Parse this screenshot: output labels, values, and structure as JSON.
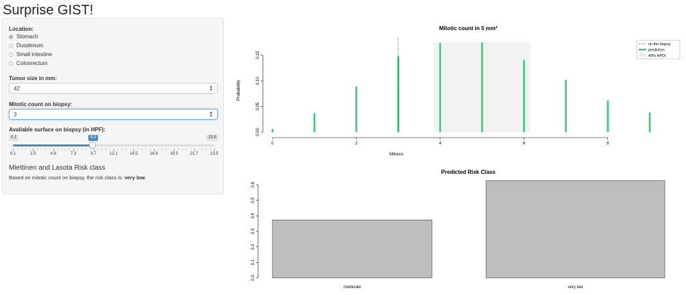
{
  "app": {
    "title": "Surprise GIST!"
  },
  "sidebar": {
    "location_label": "Location:",
    "locations": [
      {
        "label": "Stomach",
        "selected": true
      },
      {
        "label": "Duodenum",
        "selected": false
      },
      {
        "label": "Small intestine",
        "selected": false
      },
      {
        "label": "Colonrectum",
        "selected": false
      }
    ],
    "tumor_size_label": "Tumor size in mm:",
    "tumor_size_value": "42",
    "mitotic_label": "Mitotic count on biopsy:",
    "mitotic_value": "3",
    "surface_label": "Available surface on biopsy (in HPF):",
    "slider": {
      "min": 0.1,
      "max": 23.5,
      "value": 9.3,
      "min_label": "0.1",
      "max_label": "23.5",
      "value_label": "9.3",
      "ticks": [
        "0.1",
        "2.5",
        "4.9",
        "7.3",
        "9.7",
        "12.1",
        "14.5",
        "16.9",
        "19.3",
        "21.7",
        "23.5"
      ]
    },
    "risk_title": "Miettinen and Lasota Risk class",
    "risk_text_prefix": "Based on mitotic count on biopsy, the risk class is: ",
    "risk_value": "very low",
    "risk_text_suffix": "."
  },
  "chart_data": [
    {
      "type": "bar",
      "title": "Mitotic count in 5 mm²",
      "xlabel": "Mitosis",
      "ylabel": "Probability",
      "x": [
        0,
        1,
        2,
        3,
        4,
        5,
        6,
        7,
        8,
        9
      ],
      "values": [
        0.006,
        0.037,
        0.089,
        0.148,
        0.174,
        0.175,
        0.141,
        0.102,
        0.062,
        0.038
      ],
      "xticks": [
        "0",
        "2",
        "4",
        "6",
        "8"
      ],
      "yticks": [
        "0.00",
        "0.05",
        "0.10",
        "0.15"
      ],
      "xlim": [
        0,
        9
      ],
      "ylim": [
        0,
        0.175
      ],
      "biopsy_line_x": 3,
      "hpdi": [
        3.85,
        6.15
      ],
      "legend": {
        "position": "top-right",
        "items": [
          "on the biopsy",
          "prediction",
          "49% HPDI"
        ]
      },
      "colors": {
        "prediction": "#3ec77a",
        "hpdi": "#f2f2f2",
        "biopsy": "#555555"
      }
    },
    {
      "type": "bar",
      "title": "Predicted Risk Class",
      "categories": [
        "moderate",
        "very low"
      ],
      "values": [
        0.373,
        0.627
      ],
      "yticks": [
        "0.0",
        "0.1",
        "0.2",
        "0.3",
        "0.4",
        "0.5",
        "0.6"
      ],
      "ylim": [
        0,
        0.6
      ],
      "colors": {
        "bar": "#bebebe"
      }
    }
  ]
}
